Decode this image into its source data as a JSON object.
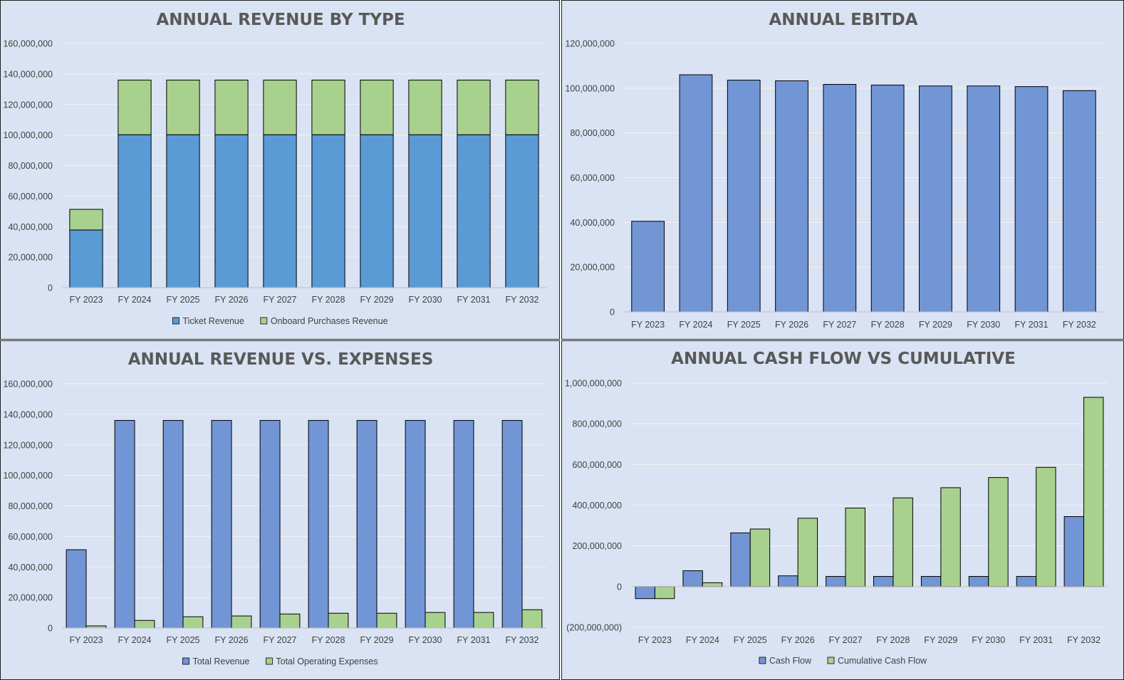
{
  "charts": {
    "colors": {
      "ticket_blue": "#5b9bd5",
      "series_blue": "#7295d6",
      "series_green": "#a9d18e",
      "panel_bg": "#dae3f3",
      "title_gray": "#595959",
      "axis_text": "#404040"
    }
  },
  "chart_data": [
    {
      "type": "bar",
      "stacked": true,
      "title": "ANNUAL REVENUE BY TYPE",
      "xlabel": "",
      "ylabel": "",
      "categories": [
        "FY 2023",
        "FY 2024",
        "FY 2025",
        "FY 2026",
        "FY 2027",
        "FY 2028",
        "FY 2029",
        "FY 2030",
        "FY 2031",
        "FY 2032"
      ],
      "series": [
        {
          "name": "Ticket Revenue",
          "color": "#5b9bd5",
          "values": [
            37800000,
            100200000,
            100200000,
            100200000,
            100200000,
            100200000,
            100200000,
            100200000,
            100200000,
            100200000
          ]
        },
        {
          "name": "Onboard Purchases Revenue",
          "color": "#a9d18e",
          "values": [
            13500000,
            35800000,
            35800000,
            35800000,
            35800000,
            35800000,
            35800000,
            35800000,
            35800000,
            35800000
          ]
        }
      ],
      "ylim": [
        0,
        160000000
      ],
      "yticks": [
        0,
        20000000,
        40000000,
        60000000,
        80000000,
        100000000,
        120000000,
        140000000,
        160000000
      ],
      "ytick_labels": [
        "0",
        "20,000,000",
        "40,000,000",
        "60,000,000",
        "80,000,000",
        "100,000,000",
        "120,000,000",
        "140,000,000",
        "160,000,000"
      ],
      "grid": true,
      "legend": "bottom"
    },
    {
      "type": "bar",
      "title": "ANNUAL EBITDA",
      "xlabel": "",
      "ylabel": "",
      "categories": [
        "FY 2023",
        "FY 2024",
        "FY 2025",
        "FY 2026",
        "FY 2027",
        "FY 2028",
        "FY 2029",
        "FY 2030",
        "FY 2031",
        "FY 2032"
      ],
      "series": [
        {
          "color": "#7295d6",
          "values": [
            40500000,
            106000000,
            103600000,
            103300000,
            101700000,
            101400000,
            101000000,
            101000000,
            100700000,
            98900000
          ]
        }
      ],
      "ylim": [
        0,
        120000000
      ],
      "yticks": [
        0,
        20000000,
        40000000,
        60000000,
        80000000,
        100000000,
        120000000
      ],
      "ytick_labels": [
        "0",
        "20,000,000",
        "40,000,000",
        "60,000,000",
        "80,000,000",
        "100,000,000",
        "120,000,000"
      ],
      "grid": true,
      "legend": "none"
    },
    {
      "type": "bar",
      "title": "ANNUAL REVENUE VS. EXPENSES",
      "xlabel": "",
      "ylabel": "",
      "categories": [
        "FY 2023",
        "FY 2024",
        "FY 2025",
        "FY 2026",
        "FY 2027",
        "FY 2028",
        "FY 2029",
        "FY 2030",
        "FY 2031",
        "FY 2032"
      ],
      "series": [
        {
          "name": "Total Revenue",
          "color": "#7295d6",
          "values": [
            51300000,
            136000000,
            136000000,
            136000000,
            136000000,
            136000000,
            136000000,
            136000000,
            136000000,
            136000000
          ]
        },
        {
          "name": "Total Operating Expenses",
          "color": "#a9d18e",
          "values": [
            1400000,
            5000000,
            7400000,
            7900000,
            9200000,
            9700000,
            9700000,
            10200000,
            10200000,
            12000000
          ]
        }
      ],
      "ylim": [
        0,
        160000000
      ],
      "yticks": [
        0,
        20000000,
        40000000,
        60000000,
        80000000,
        100000000,
        120000000,
        140000000,
        160000000
      ],
      "ytick_labels": [
        "0",
        "20,000,000",
        "40,000,000",
        "60,000,000",
        "80,000,000",
        "100,000,000",
        "120,000,000",
        "140,000,000",
        "160,000,000"
      ],
      "grid": true,
      "legend": "bottom"
    },
    {
      "type": "bar",
      "title": "ANNUAL CASH FLOW VS CUMULATIVE",
      "xlabel": "",
      "ylabel": "",
      "categories": [
        "FY 2023",
        "FY 2024",
        "FY 2025",
        "FY 2026",
        "FY 2027",
        "FY 2028",
        "FY 2029",
        "FY 2030",
        "FY 2031",
        "FY 2032"
      ],
      "series": [
        {
          "name": "Cash Flow",
          "color": "#7295d6",
          "values": [
            -59000000,
            78000000,
            264000000,
            53000000,
            50000000,
            50000000,
            50000000,
            50000000,
            50000000,
            344000000
          ]
        },
        {
          "name": "Cumulative Cash Flow",
          "color": "#a9d18e",
          "values": [
            -59000000,
            19000000,
            283000000,
            336000000,
            386000000,
            436000000,
            486000000,
            536000000,
            586000000,
            930000000
          ]
        }
      ],
      "ylim": [
        -200000000,
        1000000000
      ],
      "yticks": [
        -200000000,
        0,
        200000000,
        400000000,
        600000000,
        800000000,
        1000000000
      ],
      "ytick_labels": [
        "(200,000,000)",
        "0",
        "200,000,000",
        "400,000,000",
        "600,000,000",
        "800,000,000",
        "1,000,000,000"
      ],
      "grid": true,
      "legend": "bottom"
    }
  ]
}
